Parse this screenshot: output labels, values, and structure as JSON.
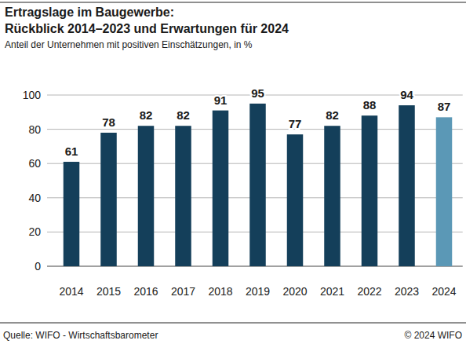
{
  "chart_data": {
    "type": "bar",
    "title": [
      "Ertragslage im Baugewerbe:",
      "Rückblick 2014–2023 und Erwartungen für 2024"
    ],
    "subtitle": "Anteil der Unternehmen mit positiven Einschätzungen, in %",
    "categories": [
      "2014",
      "2015",
      "2016",
      "2017",
      "2018",
      "2019",
      "2020",
      "2021",
      "2022",
      "2023",
      "2024"
    ],
    "values": [
      61,
      78,
      82,
      82,
      91,
      95,
      77,
      82,
      88,
      94,
      87
    ],
    "colors": [
      "#143f5a",
      "#143f5a",
      "#143f5a",
      "#143f5a",
      "#143f5a",
      "#143f5a",
      "#143f5a",
      "#143f5a",
      "#143f5a",
      "#143f5a",
      "#5b98b6"
    ],
    "ylim": [
      0,
      100
    ],
    "yticks": [
      0,
      20,
      40,
      60,
      80,
      100
    ],
    "grid": true,
    "data_labels": true,
    "source": "Quelle: WIFO - Wirtschaftsbarometer",
    "copyright": "© 2024 WIFO"
  }
}
